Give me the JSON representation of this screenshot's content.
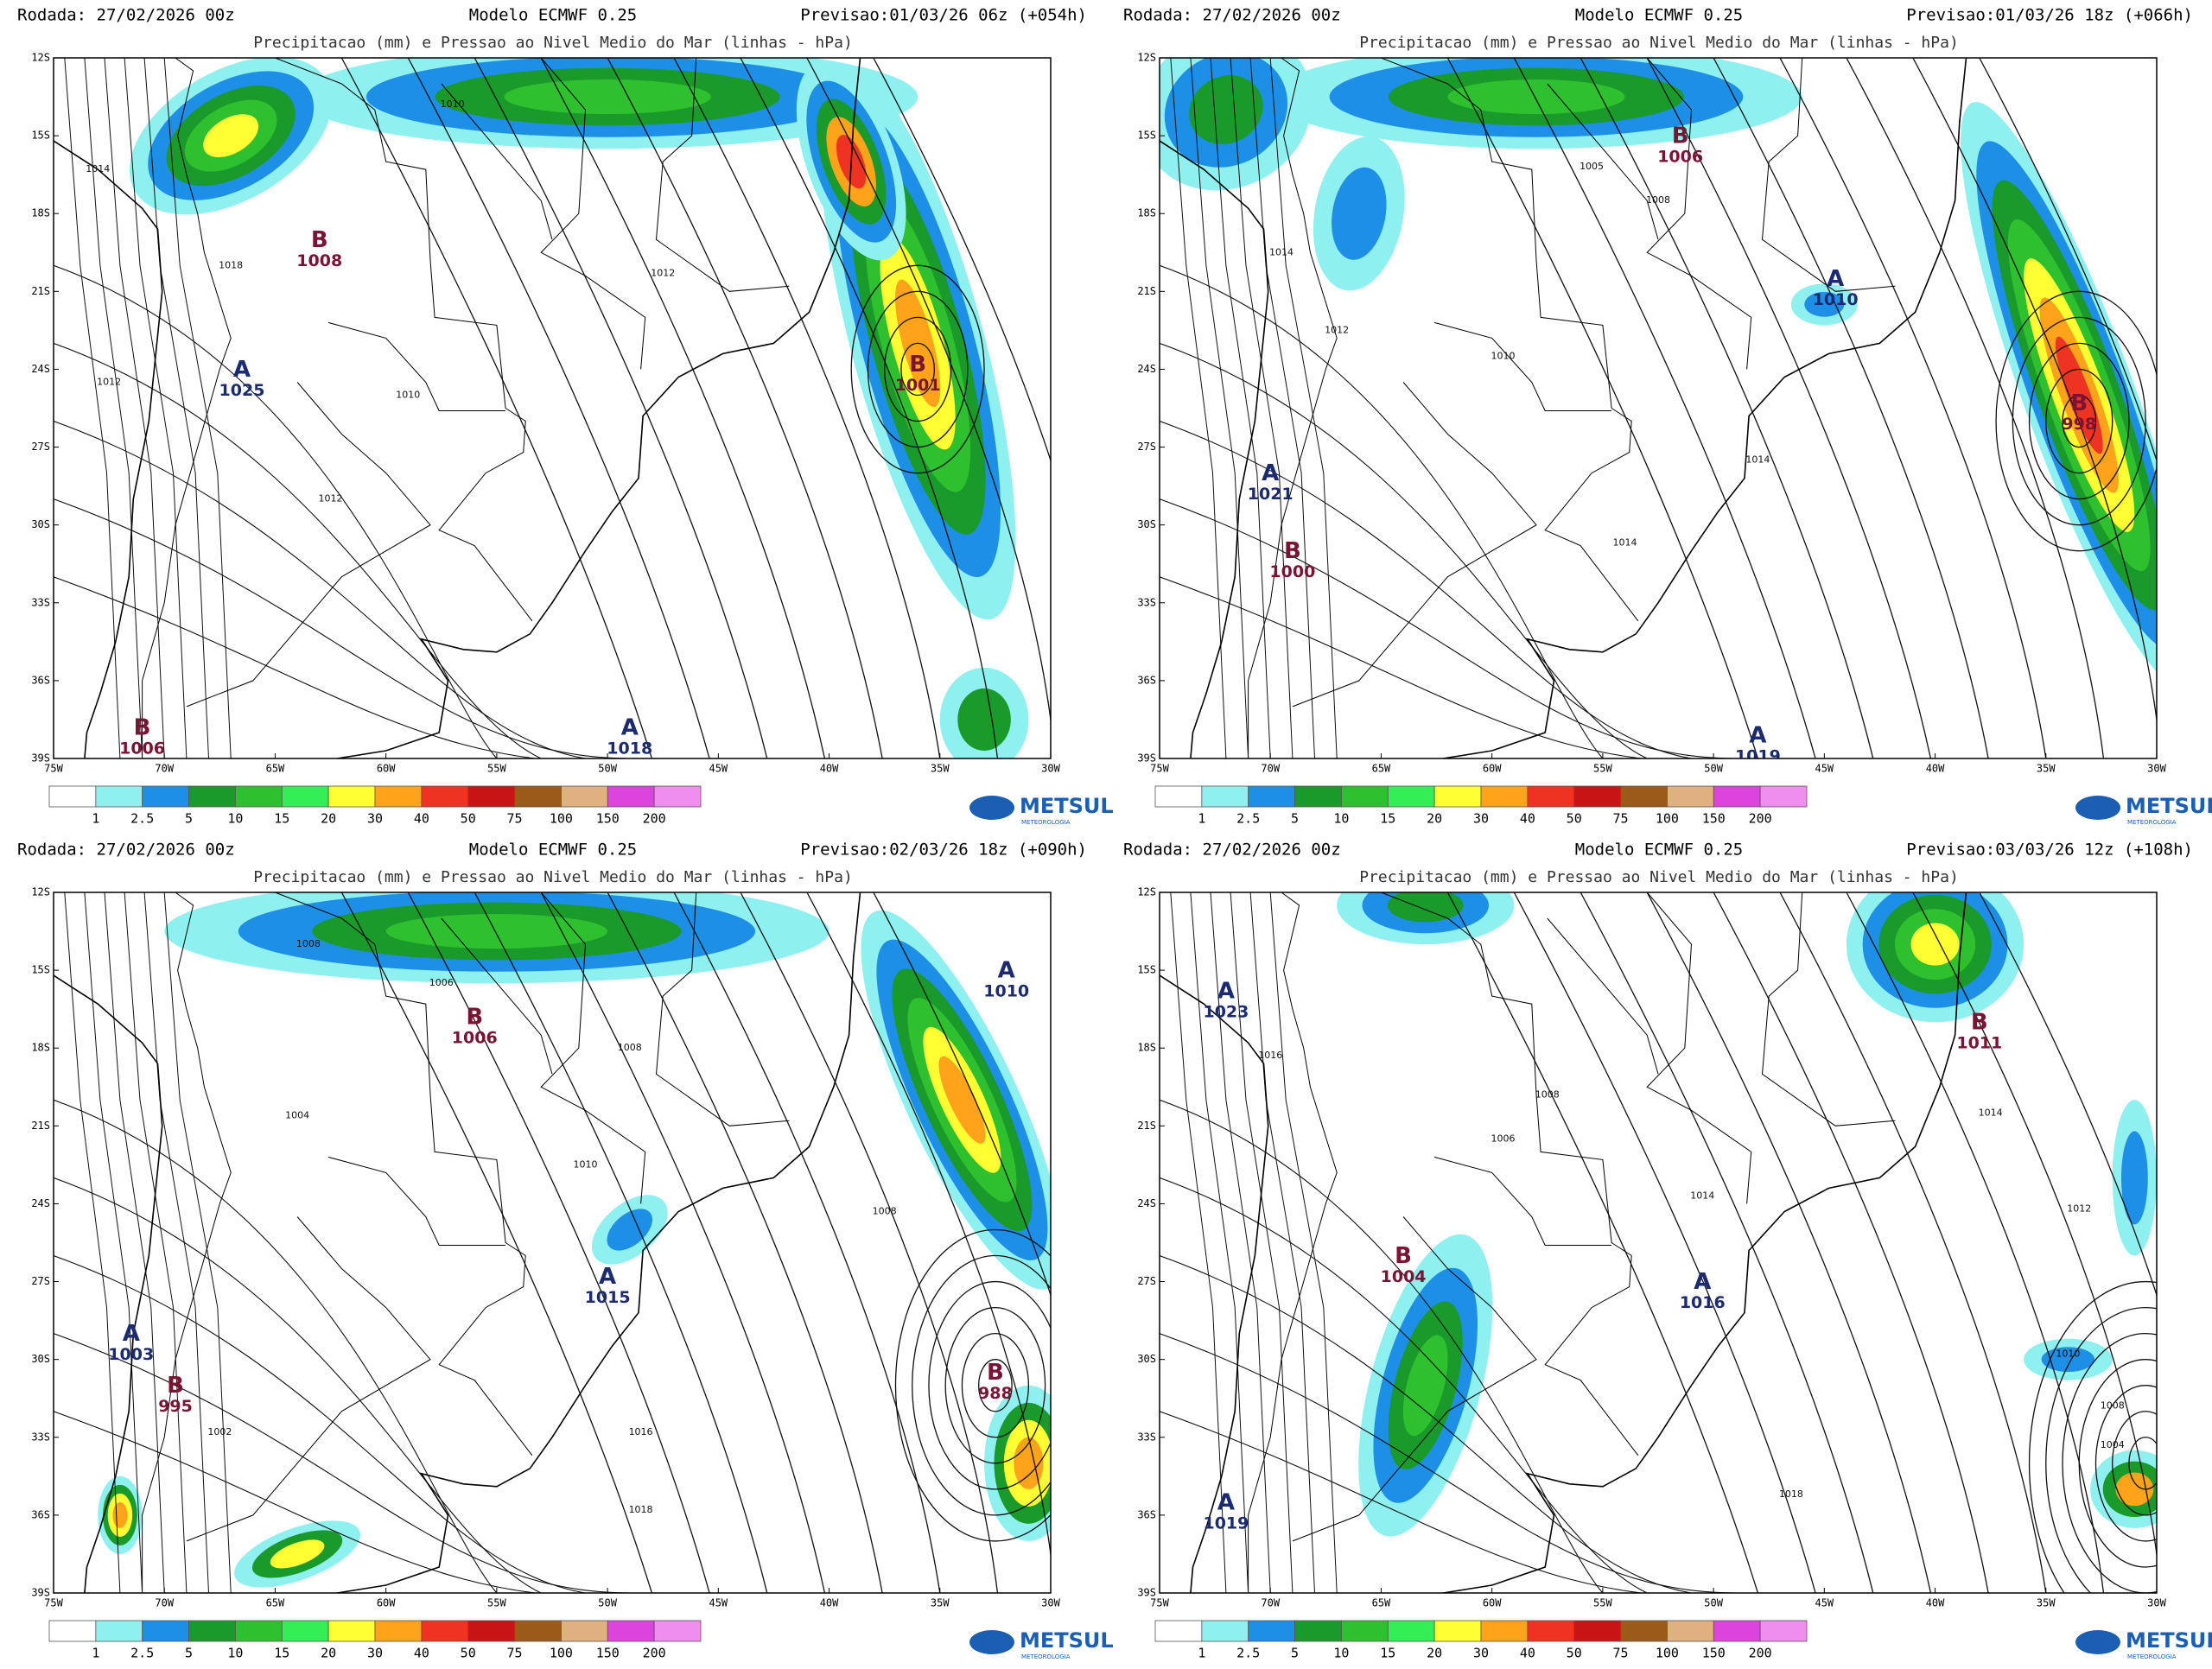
{
  "axes": {
    "lon_labels": [
      "75W",
      "70W",
      "65W",
      "60W",
      "55W",
      "50W",
      "45W",
      "40W",
      "35W",
      "30W"
    ],
    "lat_labels": [
      "12S",
      "15S",
      "18S",
      "21S",
      "24S",
      "27S",
      "30S",
      "33S",
      "36S",
      "39S"
    ]
  },
  "legend": {
    "labels": [
      "1",
      "2.5",
      "5",
      "10",
      "15",
      "20",
      "30",
      "40",
      "50",
      "75",
      "100",
      "150",
      "200"
    ],
    "colors": [
      "#ffffff",
      "#8ff0f0",
      "#1e8fe6",
      "#1a9a2a",
      "#2fc02f",
      "#33ee55",
      "#ffff33",
      "#ffa31a",
      "#ee3322",
      "#c81414",
      "#9b5a1a",
      "#e0b080",
      "#dd44dd",
      "#f08ef0",
      "#ffc8f0"
    ]
  },
  "logo": {
    "name": "METSUL",
    "tagline": "METEOROLOGIA"
  },
  "panels": [
    {
      "run": "Rodada: 27/02/2026 00z",
      "model": "Modelo ECMWF 0.25",
      "forecast": "Previsao:01/03/26 06z (+054h)",
      "title": "Precipitacao (mm) e Pressao ao Nivel Medio do Mar (linhas - hPa)",
      "centers": [
        {
          "letter": "B",
          "value": "1008"
        },
        {
          "letter": "A",
          "value": "1025"
        },
        {
          "letter": "B",
          "value": "1001"
        },
        {
          "letter": "B",
          "value": "1006"
        },
        {
          "letter": "A",
          "value": "1018"
        }
      ],
      "isobar_labels": [
        "1010",
        "1012",
        "1014",
        "1018",
        "1012",
        "1010",
        "1012"
      ]
    },
    {
      "run": "Rodada: 27/02/2026 00z",
      "model": "Modelo ECMWF 0.25",
      "forecast": "Previsao:01/03/26 18z (+066h)",
      "title": "Precipitacao (mm) e Pressao ao Nivel Medio do Mar (linhas - hPa)",
      "centers": [
        {
          "letter": "B",
          "value": "1006"
        },
        {
          "letter": "A",
          "value": "1021"
        },
        {
          "letter": "B",
          "value": "1000"
        },
        {
          "letter": "B",
          "value": "998"
        },
        {
          "letter": "A",
          "value": "1019"
        },
        {
          "letter": "A",
          "value": "1010"
        }
      ],
      "isobar_labels": [
        "1005",
        "1008",
        "1014",
        "1012",
        "1010",
        "1014",
        "1014"
      ]
    },
    {
      "run": "Rodada: 27/02/2026 00z",
      "model": "Modelo ECMWF 0.25",
      "forecast": "Previsao:02/03/26 18z (+090h)",
      "title": "Precipitacao (mm) e Pressao ao Nivel Medio do Mar (linhas - hPa)",
      "centers": [
        {
          "letter": "A",
          "value": "1010"
        },
        {
          "letter": "B",
          "value": "1006"
        },
        {
          "letter": "A",
          "value": "1015"
        },
        {
          "letter": "A",
          "value": "1003"
        },
        {
          "letter": "B",
          "value": "995"
        },
        {
          "letter": "B",
          "value": "988"
        }
      ],
      "isobar_labels": [
        "1008",
        "1006",
        "1004",
        "1010",
        "1008",
        "1016",
        "1018",
        "1008",
        "1002"
      ]
    },
    {
      "run": "Rodada: 27/02/2026 00z",
      "model": "Modelo ECMWF 0.25",
      "forecast": "Previsao:03/03/26 12z (+108h)",
      "title": "Precipitacao (mm) e Pressao ao Nivel Medio do Mar (linhas - hPa)",
      "centers": [
        {
          "letter": "A",
          "value": "1023"
        },
        {
          "letter": "B",
          "value": "1004"
        },
        {
          "letter": "A",
          "value": "1016"
        },
        {
          "letter": "B",
          "value": "1011"
        },
        {
          "letter": "A",
          "value": "1019"
        }
      ],
      "isobar_labels": [
        "1016",
        "1008",
        "1006",
        "1014",
        "1012",
        "1010",
        "1008",
        "1004",
        "1018",
        "1014"
      ]
    }
  ]
}
